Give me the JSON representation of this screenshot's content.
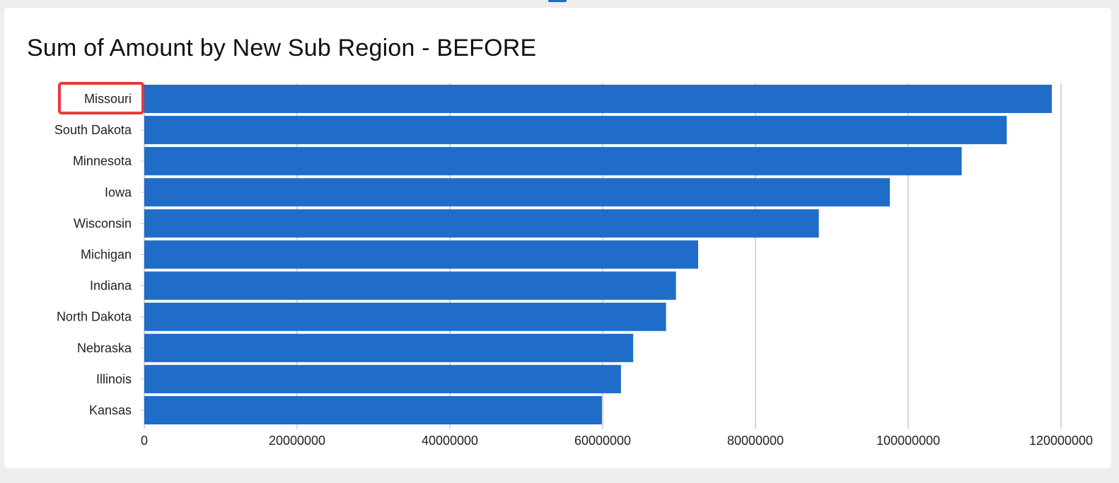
{
  "chart_data": {
    "type": "bar",
    "orientation": "horizontal",
    "title": "Sum of Amount by New Sub Region - BEFORE",
    "xlabel": "",
    "ylabel": "",
    "categories": [
      "Missouri",
      "South Dakota",
      "Minnesota",
      "Iowa",
      "Wisconsin",
      "Michigan",
      "Indiana",
      "North Dakota",
      "Nebraska",
      "Illinois",
      "Kansas"
    ],
    "values": [
      118800000,
      112900000,
      107000000,
      97600000,
      88300000,
      72500000,
      69600000,
      68300000,
      64000000,
      62400000,
      59900000
    ],
    "x_ticks": [
      "0",
      "20000000",
      "40000000",
      "60000000",
      "80000000",
      "100000000",
      "120000000"
    ],
    "xlim": [
      0,
      120000000
    ],
    "grid": true,
    "bar_color": "#1f6cc9",
    "highlighted_category": "Missouri",
    "highlight_color": "#e8373c"
  }
}
